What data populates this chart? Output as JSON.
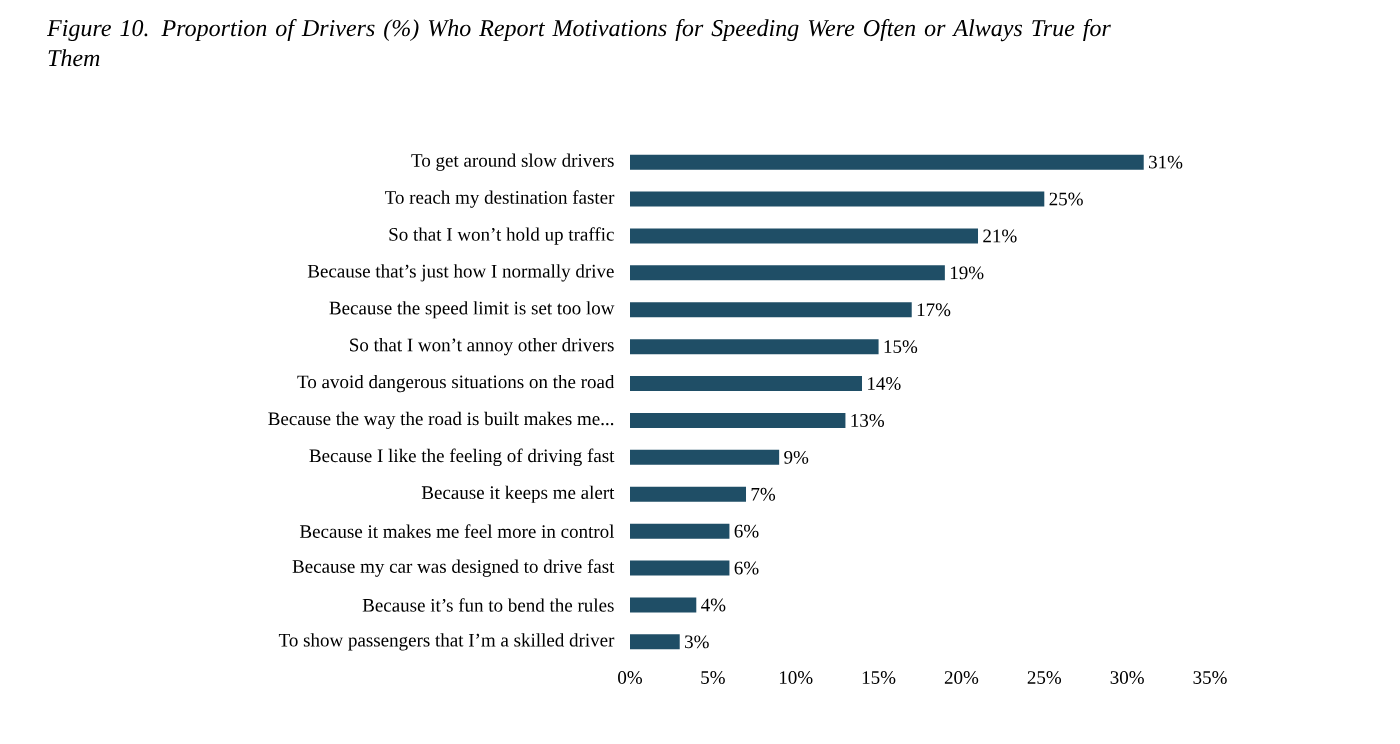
{
  "chart_data": {
    "type": "bar",
    "orientation": "horizontal",
    "title": "Figure 10. Proportion of Drivers (%) Who Report Motivations for Speeding Were Often or Always True for Them",
    "categories": [
      "To get around slow drivers",
      "To reach my destination faster",
      "So that I won’t hold up traffic",
      "Because that’s just how I normally drive",
      "Because the speed limit is set too low",
      "So that I won’t annoy other drivers",
      "To avoid dangerous situations on the road",
      "Because the way the road is built makes me...",
      "Because I like the feeling of driving fast",
      "Because it keeps me alert",
      "Because it makes me feel more in control",
      "Because my car was designed to drive fast",
      "Because it’s fun to bend the rules",
      "To show passengers that I’m a skilled driver"
    ],
    "values": [
      31,
      25,
      21,
      19,
      17,
      15,
      14,
      13,
      9,
      7,
      6,
      6,
      4,
      3
    ],
    "value_labels": [
      "31%",
      "25%",
      "21%",
      "19%",
      "17%",
      "15%",
      "14%",
      "13%",
      "9%",
      "7%",
      "6%",
      "6%",
      "4%",
      "3%"
    ],
    "color": "#1f4e66",
    "xlim": [
      0,
      35
    ],
    "xticks": [
      {
        "value": 0,
        "label": "0%"
      },
      {
        "value": 5,
        "label": "5%"
      },
      {
        "value": 10,
        "label": "10%"
      },
      {
        "value": 15,
        "label": "15%"
      },
      {
        "value": 20,
        "label": "20%"
      },
      {
        "value": 25,
        "label": "25%"
      },
      {
        "value": 30,
        "label": "30%"
      },
      {
        "value": 35,
        "label": "35%"
      }
    ]
  }
}
